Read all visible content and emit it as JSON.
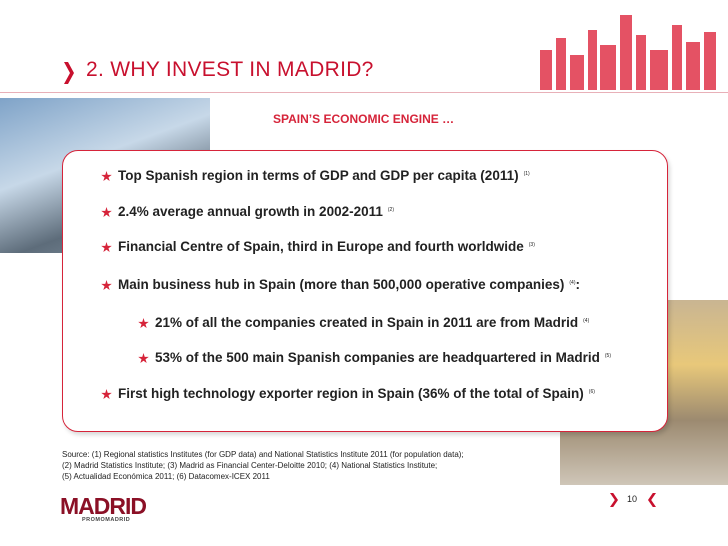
{
  "header": {
    "title": "2. WHY INVEST IN MADRID?",
    "subtitle": "SPAIN’S ECONOMIC ENGINE …"
  },
  "bullets": [
    {
      "level": 1,
      "text": "Top Spanish region in terms of GDP and GDP per capita (2011)",
      "note": "(1)"
    },
    {
      "level": 1,
      "text": "2.4% average annual growth in 2002-2011",
      "note": "(2)"
    },
    {
      "level": 1,
      "text": "Financial Centre of Spain, third in Europe and fourth worldwide",
      "note": "(3)"
    },
    {
      "level": 1,
      "text": "Main business hub in Spain (more than 500,000 operative companies)",
      "note": "(4)",
      "tail": ":"
    },
    {
      "level": 2,
      "text": "21% of all the companies created in Spain in 2011 are from Madrid",
      "note": "(4)"
    },
    {
      "level": 2,
      "text": "53% of the 500 main Spanish companies are headquartered in Madrid",
      "note": "(5)"
    },
    {
      "level": 1,
      "text": "First high technology exporter region in Spain (36% of the total of Spain)",
      "note": "(6)"
    }
  ],
  "sources": [
    "Source: (1) Regional statistics Institutes (for GDP data) and National Statistics Institute 2011 (for population data);",
    "(2) Madrid Statistics Institute;  (3) Madrid as Financial Center-Deloitte 2010; (4) National Statistics Institute;",
    "(5) Actualidad Económica 2011; (6) Datacomex-ICEX 2011"
  ],
  "footer": {
    "logo": "MADRID",
    "logo_subtitle": "PROMOMADRID",
    "page": "10"
  }
}
